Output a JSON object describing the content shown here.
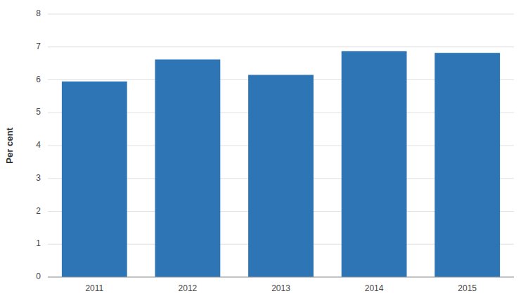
{
  "chart_data": {
    "type": "bar",
    "categories": [
      "2011",
      "2012",
      "2013",
      "2014",
      "2015"
    ],
    "values": [
      5.95,
      6.62,
      6.15,
      6.87,
      6.82
    ],
    "color": "#2E75B6",
    "ylabel": "Per cent",
    "ylim": [
      0,
      8
    ],
    "yticks": [
      0,
      1,
      2,
      3,
      4,
      5,
      6,
      7,
      8
    ],
    "grid": true
  }
}
